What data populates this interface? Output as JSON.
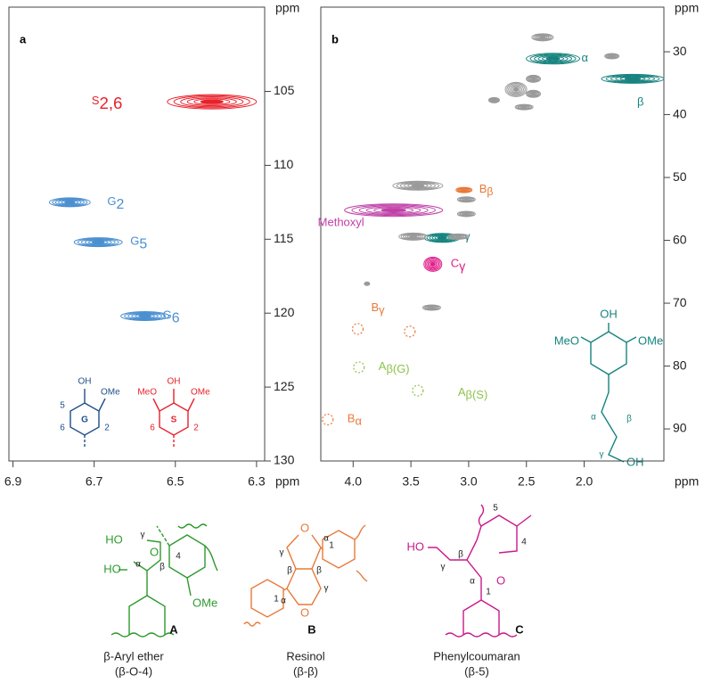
{
  "chart_data": [
    {
      "type": "scatter",
      "title": "a",
      "xlabel": "ppm",
      "ylabel": "ppm",
      "xlim": [
        6.91,
        6.28
      ],
      "xticks": [
        6.9,
        6.7,
        6.5,
        6.3
      ],
      "ylim": [
        99.3,
        130
      ],
      "yticks": [
        105,
        110,
        115,
        120,
        125,
        130
      ],
      "peaks": [
        {
          "label": "S",
          "sub": "2,6",
          "x": 6.41,
          "y": 105.7,
          "color": "#e8212b",
          "style": "solid"
        },
        {
          "label": "G",
          "sub": "2",
          "x": 6.76,
          "y": 112.5,
          "color": "#4a8fd0",
          "style": "solid"
        },
        {
          "label": "G",
          "sub": "5",
          "x": 6.69,
          "y": 115.2,
          "color": "#4a8fd0",
          "style": "solid"
        },
        {
          "label": "G",
          "sub": "6",
          "x": 6.575,
          "y": 120.2,
          "color": "#4a8fd0",
          "style": "solid"
        }
      ]
    },
    {
      "type": "scatter",
      "title": "b",
      "xlabel": "ppm",
      "ylabel": "ppm",
      "xlim": [
        4.28,
        1.31
      ],
      "xticks": [
        {
          "value": 4,
          "label": "4.0"
        },
        3.5,
        {
          "value": 3,
          "label": "3.0"
        },
        2.5,
        {
          "value": 2,
          "label": "2.0"
        }
      ],
      "ylim": [
        22.9,
        95.1
      ],
      "yticks": [
        30,
        40,
        50,
        60,
        70,
        80,
        90
      ],
      "peaks": [
        {
          "label": "α",
          "x": 2.27,
          "y": 31.1,
          "color": "#16837f",
          "style": "solid"
        },
        {
          "label": "β",
          "x": 1.58,
          "y": 34.3,
          "color": "#16837f",
          "style": "solid"
        },
        {
          "label": "B",
          "sub": "β",
          "x": 3.04,
          "y": 52,
          "color": "#e8793a",
          "style": "solid"
        },
        {
          "label": "Methoxyl",
          "x": 3.65,
          "y": 55.2,
          "color": "#c040a8",
          "style": "solid"
        },
        {
          "label": "γ",
          "x": 3.23,
          "y": 59.6,
          "color": "#16837f",
          "style": "solid"
        },
        {
          "label": "C",
          "sub": "γ",
          "x": 3.31,
          "y": 63.8,
          "color": "#e0208c",
          "style": "solid"
        },
        {
          "label": "B",
          "sub": "γ",
          "x": 3.96,
          "y": 74.1,
          "color": "#e8793a",
          "style": "dashed"
        },
        {
          "x": 3.51,
          "y": 74.5,
          "color": "#e8793a",
          "style": "dashed"
        },
        {
          "label": "A",
          "sub": "β(G)",
          "x": 3.95,
          "y": 80.2,
          "color": "#8bc34a",
          "style": "dashed"
        },
        {
          "label": "A",
          "sub": "β(S)",
          "x": 3.44,
          "y": 83.9,
          "color": "#8bc34a",
          "style": "dashed"
        },
        {
          "label": "B",
          "sub": "α",
          "x": 4.22,
          "y": 88.5,
          "color": "#e8793a",
          "style": "dashed"
        },
        {
          "x": 2.36,
          "y": 27.7,
          "color": "#9a9a9a",
          "style": "solid"
        },
        {
          "x": 1.76,
          "y": 30.7,
          "color": "#9a9a9a",
          "style": "solid"
        },
        {
          "x": 2.44,
          "y": 34.3,
          "color": "#9a9a9a",
          "style": "solid"
        },
        {
          "x": 2.59,
          "y": 36.0,
          "color": "#9a9a9a",
          "style": "solid"
        },
        {
          "x": 2.44,
          "y": 36.7,
          "color": "#9a9a9a",
          "style": "solid"
        },
        {
          "x": 2.78,
          "y": 37.7,
          "color": "#9a9a9a",
          "style": "solid"
        },
        {
          "x": 2.52,
          "y": 38.8,
          "color": "#9a9a9a",
          "style": "solid"
        },
        {
          "x": 3.44,
          "y": 51.3,
          "color": "#9a9a9a",
          "style": "solid"
        },
        {
          "x": 3.02,
          "y": 53.5,
          "color": "#9a9a9a",
          "style": "solid"
        },
        {
          "x": 3.02,
          "y": 55.8,
          "color": "#9a9a9a",
          "style": "solid"
        },
        {
          "x": 3.48,
          "y": 59.4,
          "color": "#9a9a9a",
          "style": "solid"
        },
        {
          "x": 3.09,
          "y": 59.4,
          "color": "#9a9a9a",
          "style": "solid"
        },
        {
          "x": 3.32,
          "y": 70.7,
          "color": "#9a9a9a",
          "style": "solid"
        },
        {
          "x": 3.88,
          "y": 66.9,
          "color": "#9a9a9a",
          "style": "solid"
        }
      ]
    }
  ],
  "structures": {
    "inset_g": [
      "OH",
      "OMe",
      "5",
      "6",
      "G",
      "2"
    ],
    "inset_s": [
      "MeO",
      "OH",
      "OMe",
      "S",
      "6",
      "2"
    ],
    "inset_b": [
      "OH",
      "MeO",
      "OMe",
      "α",
      "β",
      "γ",
      "OH"
    ],
    "A": {
      "atoms": [
        "HO",
        "HO",
        "γ",
        "α",
        "β",
        "O",
        "4",
        "OMe"
      ],
      "letter": "A",
      "name": "β-Aryl ether",
      "linkage": "(β-O-4)"
    },
    "B": {
      "atoms": [
        "O",
        "O",
        "γ",
        "α",
        "β",
        "β",
        "α",
        "γ",
        "1",
        "1"
      ],
      "letter": "B",
      "name": "Resinol",
      "linkage": "(β-β)"
    },
    "C": {
      "atoms": [
        "HO",
        "γ",
        "β",
        "α",
        "O",
        "5",
        "4",
        "1"
      ],
      "letter": "C",
      "name": "Phenylcoumaran",
      "linkage": "(β-5)"
    }
  }
}
